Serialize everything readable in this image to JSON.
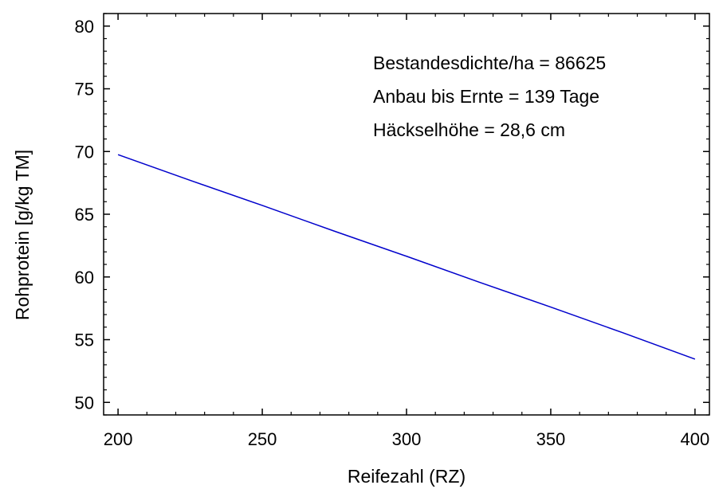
{
  "chart_data": {
    "type": "line",
    "xlabel": "Reifezahl (RZ)",
    "ylabel": "Rohprotein [g/kg TM]",
    "xlim": [
      195,
      405
    ],
    "ylim": [
      49,
      81
    ],
    "xticks": [
      200,
      250,
      300,
      350,
      400
    ],
    "yticks": [
      50,
      55,
      60,
      65,
      70,
      75,
      80
    ],
    "xtick_labels": [
      "200",
      "250",
      "300",
      "350",
      "400"
    ],
    "ytick_labels": [
      "50",
      "55",
      "60",
      "65",
      "70",
      "75",
      "80"
    ],
    "grid": false,
    "line_color": "#0000cc",
    "series": [
      {
        "x": [
          200,
          225,
          250,
          275,
          300,
          325,
          350,
          375,
          400
        ],
        "y": [
          69.75,
          67.7,
          65.7,
          63.65,
          61.65,
          59.6,
          57.6,
          55.55,
          53.45
        ]
      }
    ],
    "annotations": [
      "Bestandesdichte/ha = 86625",
      "Anbau bis Ernte = 139 Tage",
      "Häckselhöhe = 28,6 cm"
    ]
  }
}
